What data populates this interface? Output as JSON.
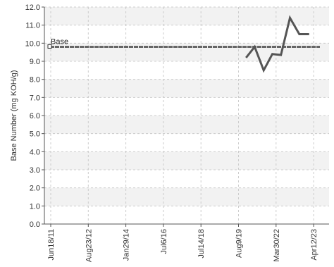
{
  "chart_data": {
    "type": "line",
    "title": "",
    "xlabel": "",
    "ylabel": "Base Number (mg KOH/g)",
    "ylim": [
      0,
      12
    ],
    "yticks": [
      "0.0",
      "1.0",
      "2.0",
      "3.0",
      "4.0",
      "5.0",
      "6.0",
      "7.0",
      "8.0",
      "9.0",
      "10.0",
      "11.0",
      "12.0"
    ],
    "xticks": [
      "Jun18/11",
      "Aug23/12",
      "Jan29/14",
      "Jul6/16",
      "Jul14/18",
      "Aug9/19",
      "Mar30/22",
      "Apr12/23"
    ],
    "grid": true,
    "reference_line": {
      "label": "Base",
      "value": 9.8
    },
    "series": [
      {
        "x": [
          5.2,
          5.43,
          5.67,
          5.9,
          6.13,
          6.37,
          6.62,
          6.88
        ],
        "values": [
          9.2,
          9.8,
          8.5,
          9.4,
          9.35,
          11.4,
          10.5,
          10.5
        ]
      }
    ],
    "colors": {
      "series": "#555555",
      "reference": "#666666",
      "grid": "#cccccc",
      "band": "#f2f2f2"
    }
  }
}
